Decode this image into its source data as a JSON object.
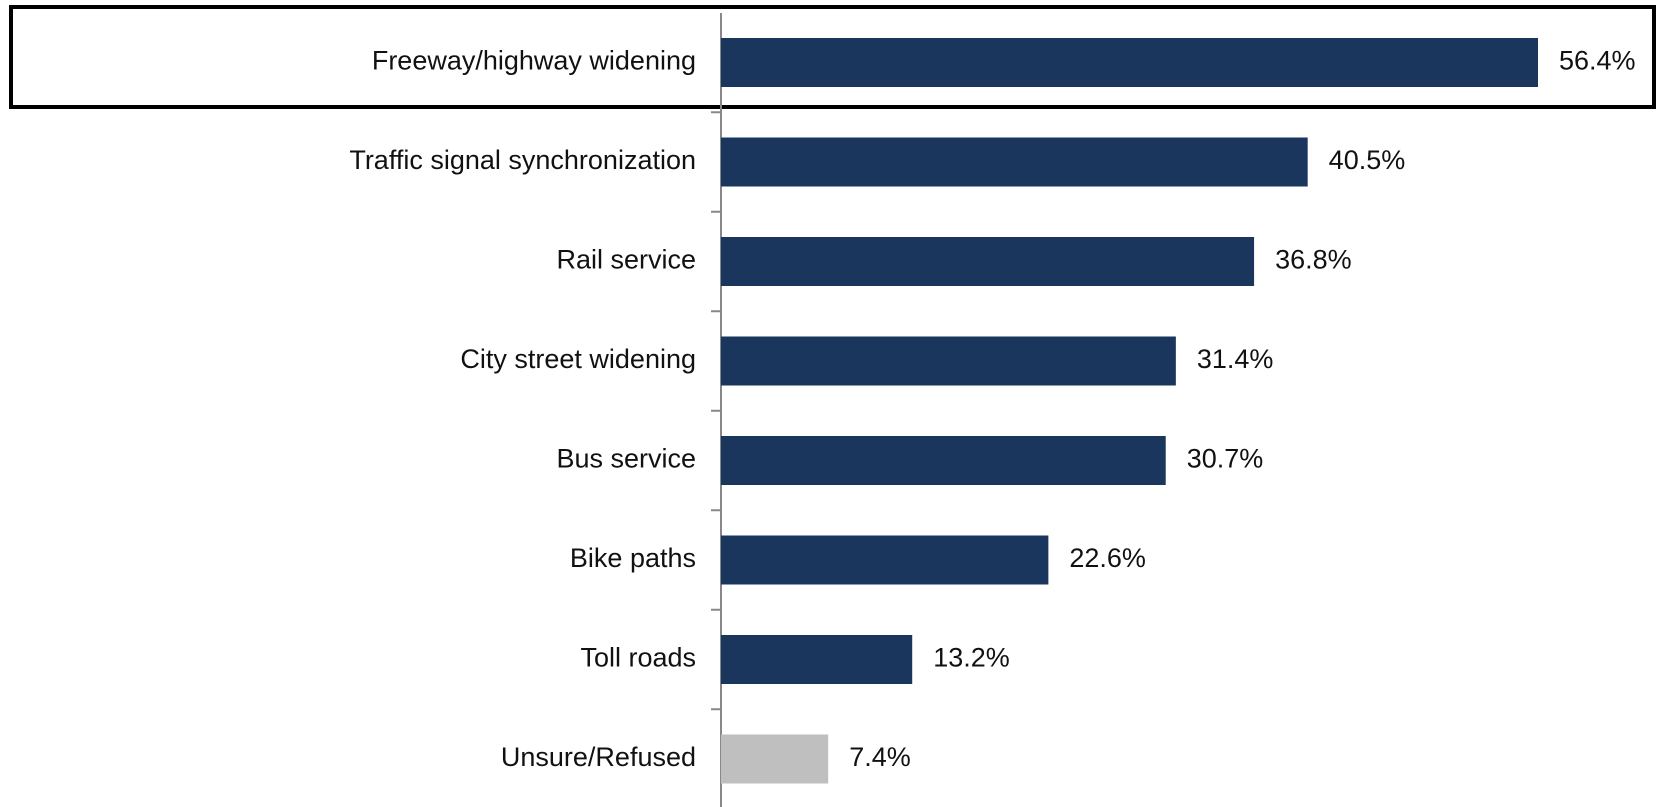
{
  "chart_data": {
    "type": "bar",
    "orientation": "horizontal",
    "categories": [
      "Freeway/highway widening",
      "Traffic signal synchronization",
      "Rail service",
      "City street widening",
      "Bus service",
      "Bike paths",
      "Toll roads",
      "Unsure/Refused"
    ],
    "values": [
      56.4,
      40.5,
      36.8,
      31.4,
      30.7,
      22.6,
      13.2,
      7.4
    ],
    "value_labels": [
      "56.4%",
      "40.5%",
      "36.8%",
      "31.4%",
      "30.7%",
      "22.6%",
      "13.2%",
      "7.4%"
    ],
    "colors": [
      "#1a365d",
      "#1a365d",
      "#1a365d",
      "#1a365d",
      "#1a365d",
      "#1a365d",
      "#1a365d",
      "#bfbfbf"
    ]
  }
}
